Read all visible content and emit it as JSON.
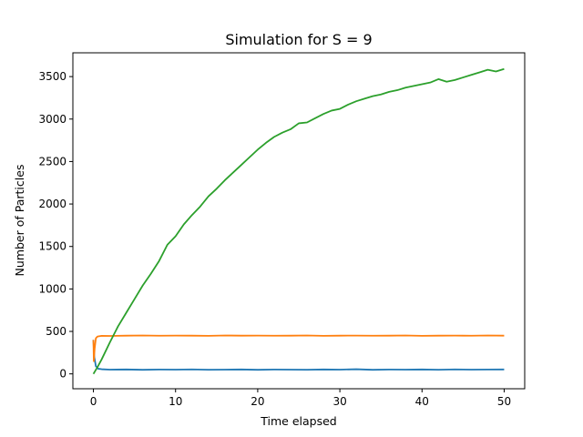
{
  "chart_data": {
    "type": "line",
    "title": "Simulation for S = 9",
    "xlabel": "Time elapsed",
    "ylabel": "Number of Particles",
    "xlim": [
      -2.5,
      52.5
    ],
    "ylim": [
      -175,
      3780
    ],
    "xticks": [
      0,
      10,
      20,
      30,
      40,
      50
    ],
    "yticks": [
      0,
      500,
      1000,
      1500,
      2000,
      2500,
      3000,
      3500
    ],
    "grid": false,
    "series": [
      {
        "color": "#1f77b4",
        "x": [
          0,
          0.1,
          0.3,
          0.6,
          1,
          2,
          4,
          6,
          8,
          10,
          12,
          14,
          16,
          18,
          20,
          22,
          24,
          26,
          28,
          30,
          32,
          34,
          36,
          38,
          40,
          42,
          44,
          46,
          48,
          50
        ],
        "y": [
          400,
          200,
          90,
          60,
          55,
          50,
          52,
          48,
          51,
          50,
          53,
          49,
          50,
          52,
          48,
          51,
          50,
          49,
          52,
          50,
          55,
          48,
          51,
          50,
          52,
          49,
          53,
          50,
          51,
          52
        ]
      },
      {
        "color": "#ff7f0e",
        "x": [
          0,
          0.05,
          0.15,
          0.3,
          0.5,
          1,
          2,
          4,
          6,
          8,
          10,
          12,
          14,
          16,
          18,
          20,
          22,
          24,
          26,
          28,
          30,
          32,
          34,
          36,
          38,
          40,
          42,
          44,
          46,
          48,
          50
        ],
        "y": [
          400,
          150,
          300,
          420,
          440,
          448,
          447,
          450,
          452,
          449,
          451,
          450,
          448,
          452,
          450,
          451,
          449,
          450,
          452,
          448,
          450,
          451,
          449,
          450,
          452,
          448,
          450,
          451,
          449,
          452,
          450
        ]
      },
      {
        "color": "#2ca02c",
        "x": [
          0,
          0.5,
          1,
          2,
          3,
          4,
          5,
          6,
          7,
          8,
          9,
          10,
          11,
          12,
          13,
          14,
          15,
          16,
          17,
          18,
          19,
          20,
          21,
          22,
          23,
          24,
          25,
          26,
          27,
          28,
          29,
          30,
          31,
          32,
          33,
          34,
          35,
          36,
          37,
          38,
          39,
          40,
          41,
          42,
          43,
          44,
          45,
          46,
          47,
          48,
          49,
          50
        ],
        "y": [
          0,
          80,
          170,
          370,
          560,
          720,
          880,
          1040,
          1180,
          1330,
          1520,
          1620,
          1760,
          1870,
          1970,
          2090,
          2180,
          2280,
          2370,
          2460,
          2550,
          2640,
          2720,
          2790,
          2840,
          2880,
          2950,
          2960,
          3010,
          3060,
          3100,
          3120,
          3170,
          3210,
          3240,
          3270,
          3290,
          3320,
          3340,
          3370,
          3390,
          3410,
          3430,
          3470,
          3440,
          3460,
          3490,
          3520,
          3550,
          3580,
          3560,
          3590
        ]
      }
    ]
  }
}
